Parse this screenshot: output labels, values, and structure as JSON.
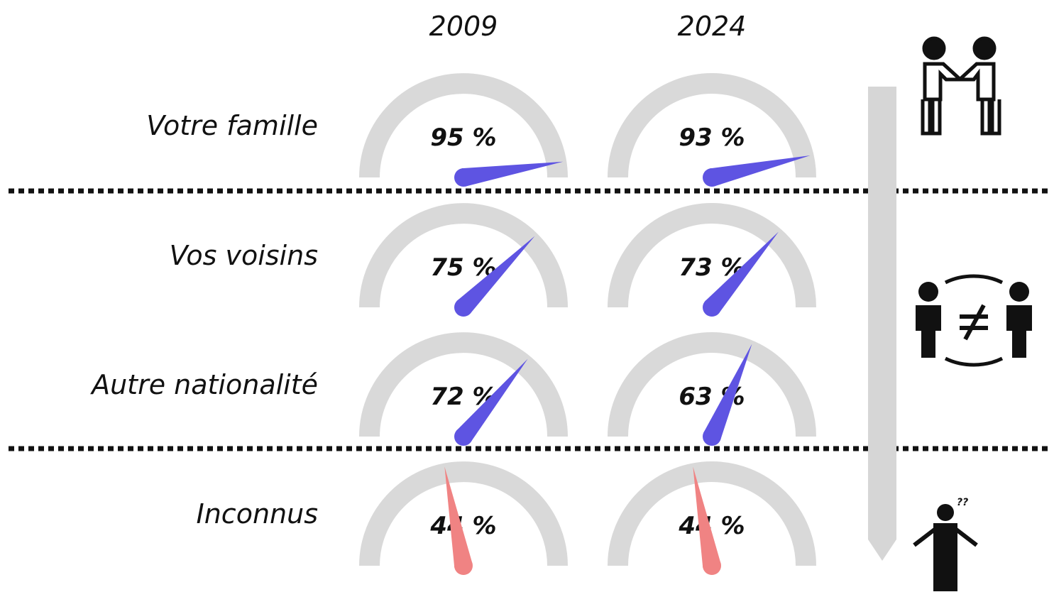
{
  "chart_data": {
    "type": "gauge",
    "categories": [
      "Votre famille",
      "Vos voisins",
      "Autre nationalité",
      "Inconnus"
    ],
    "series": [
      {
        "name": "2009",
        "values": [
          95,
          75,
          72,
          44
        ],
        "value_labels": [
          "95 %",
          "75 %",
          "72 %",
          "44 %"
        ]
      },
      {
        "name": "2024",
        "values": [
          93,
          73,
          63,
          44
        ],
        "value_labels": [
          "93 %",
          "73 %",
          "63 %",
          "44 %"
        ]
      }
    ],
    "colors": [
      "#5e54e2",
      "#5e54e2",
      "#5e54e2",
      "#f08383"
    ],
    "track_color": "#d9d9d9",
    "ylim": [
      0,
      100
    ]
  }
}
